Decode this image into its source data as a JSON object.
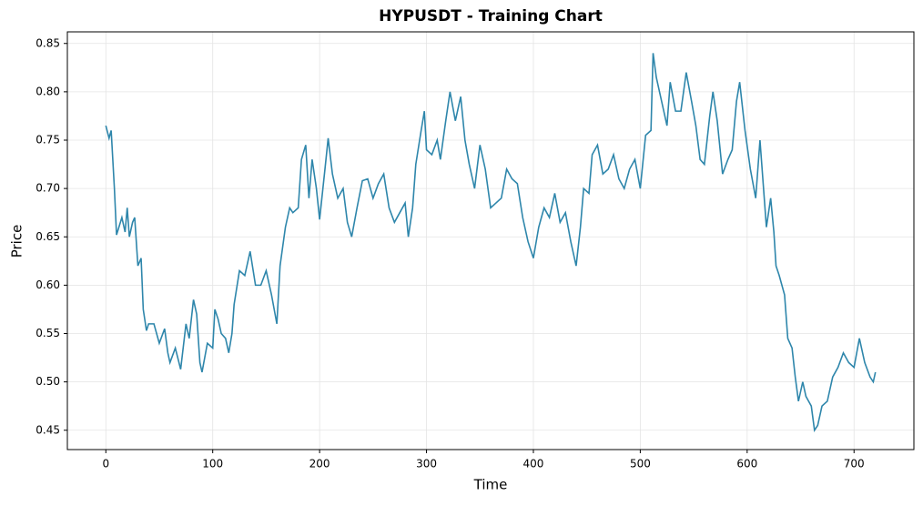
{
  "chart_data": {
    "type": "line",
    "title": "HYPUSDT - Training Chart",
    "x_label": "Time",
    "y_label": "Price",
    "x": [
      0,
      3,
      5,
      8,
      10,
      15,
      18,
      20,
      22,
      25,
      27,
      30,
      33,
      35,
      38,
      40,
      45,
      50,
      55,
      58,
      60,
      65,
      70,
      75,
      78,
      82,
      85,
      88,
      90,
      95,
      100,
      102,
      105,
      108,
      112,
      115,
      118,
      120,
      125,
      130,
      135,
      140,
      145,
      150,
      155,
      160,
      163,
      168,
      172,
      175,
      180,
      183,
      187,
      190,
      193,
      197,
      200,
      205,
      208,
      212,
      217,
      222,
      226,
      230,
      235,
      240,
      245,
      250,
      255,
      260,
      265,
      270,
      275,
      280,
      283,
      287,
      290,
      295,
      298,
      300,
      305,
      310,
      313,
      318,
      322,
      327,
      332,
      336,
      340,
      345,
      350,
      355,
      360,
      365,
      370,
      375,
      380,
      385,
      390,
      395,
      400,
      405,
      410,
      415,
      420,
      425,
      430,
      435,
      440,
      444,
      447,
      452,
      455,
      460,
      465,
      470,
      475,
      480,
      485,
      490,
      495,
      500,
      505,
      510,
      512,
      515,
      520,
      525,
      528,
      533,
      538,
      543,
      548,
      552,
      556,
      560,
      565,
      568,
      572,
      577,
      582,
      586,
      590,
      593,
      598,
      603,
      608,
      612,
      615,
      618,
      622,
      625,
      627,
      630,
      635,
      638,
      642,
      645,
      648,
      652,
      655,
      660,
      663,
      666,
      670,
      675,
      680,
      685,
      690,
      695,
      700,
      705,
      710,
      715,
      718,
      720
    ],
    "series": [
      {
        "name": "Price",
        "color": "#2e86ab",
        "values": [
          0.765,
          0.752,
          0.76,
          0.7,
          0.652,
          0.67,
          0.655,
          0.68,
          0.65,
          0.665,
          0.67,
          0.62,
          0.628,
          0.575,
          0.553,
          0.56,
          0.56,
          0.54,
          0.555,
          0.53,
          0.52,
          0.535,
          0.513,
          0.56,
          0.545,
          0.585,
          0.57,
          0.52,
          0.51,
          0.54,
          0.535,
          0.575,
          0.565,
          0.55,
          0.545,
          0.53,
          0.55,
          0.58,
          0.615,
          0.61,
          0.635,
          0.6,
          0.6,
          0.615,
          0.59,
          0.56,
          0.62,
          0.66,
          0.68,
          0.675,
          0.68,
          0.73,
          0.745,
          0.69,
          0.73,
          0.7,
          0.668,
          0.72,
          0.752,
          0.715,
          0.69,
          0.7,
          0.665,
          0.65,
          0.68,
          0.708,
          0.71,
          0.69,
          0.705,
          0.715,
          0.68,
          0.665,
          0.675,
          0.685,
          0.65,
          0.68,
          0.725,
          0.76,
          0.78,
          0.74,
          0.735,
          0.75,
          0.73,
          0.77,
          0.8,
          0.77,
          0.795,
          0.75,
          0.725,
          0.7,
          0.745,
          0.72,
          0.68,
          0.685,
          0.69,
          0.72,
          0.71,
          0.705,
          0.67,
          0.645,
          0.628,
          0.66,
          0.68,
          0.67,
          0.695,
          0.665,
          0.675,
          0.645,
          0.62,
          0.66,
          0.7,
          0.695,
          0.735,
          0.745,
          0.715,
          0.72,
          0.735,
          0.71,
          0.7,
          0.72,
          0.73,
          0.7,
          0.755,
          0.76,
          0.84,
          0.815,
          0.79,
          0.765,
          0.81,
          0.78,
          0.78,
          0.82,
          0.79,
          0.765,
          0.73,
          0.725,
          0.775,
          0.8,
          0.77,
          0.715,
          0.73,
          0.74,
          0.79,
          0.81,
          0.76,
          0.72,
          0.69,
          0.75,
          0.705,
          0.66,
          0.69,
          0.655,
          0.62,
          0.61,
          0.59,
          0.545,
          0.535,
          0.505,
          0.48,
          0.5,
          0.485,
          0.475,
          0.45,
          0.455,
          0.475,
          0.48,
          0.505,
          0.515,
          0.53,
          0.52,
          0.515,
          0.545,
          0.52,
          0.505,
          0.5,
          0.51
        ]
      }
    ],
    "xlim": [
      -36,
      756
    ],
    "ylim": [
      0.43,
      0.862
    ],
    "xticks": [
      0,
      100,
      200,
      300,
      400,
      500,
      600,
      700
    ],
    "yticks": [
      0.45,
      {
        "value": 0.5,
        "label": "0.50"
      },
      0.55,
      {
        "value": 0.6,
        "label": "0.60"
      },
      0.65,
      {
        "value": 0.7,
        "label": "0.70"
      },
      0.75,
      {
        "value": 0.8,
        "label": "0.80"
      },
      0.85
    ],
    "grid": true
  }
}
